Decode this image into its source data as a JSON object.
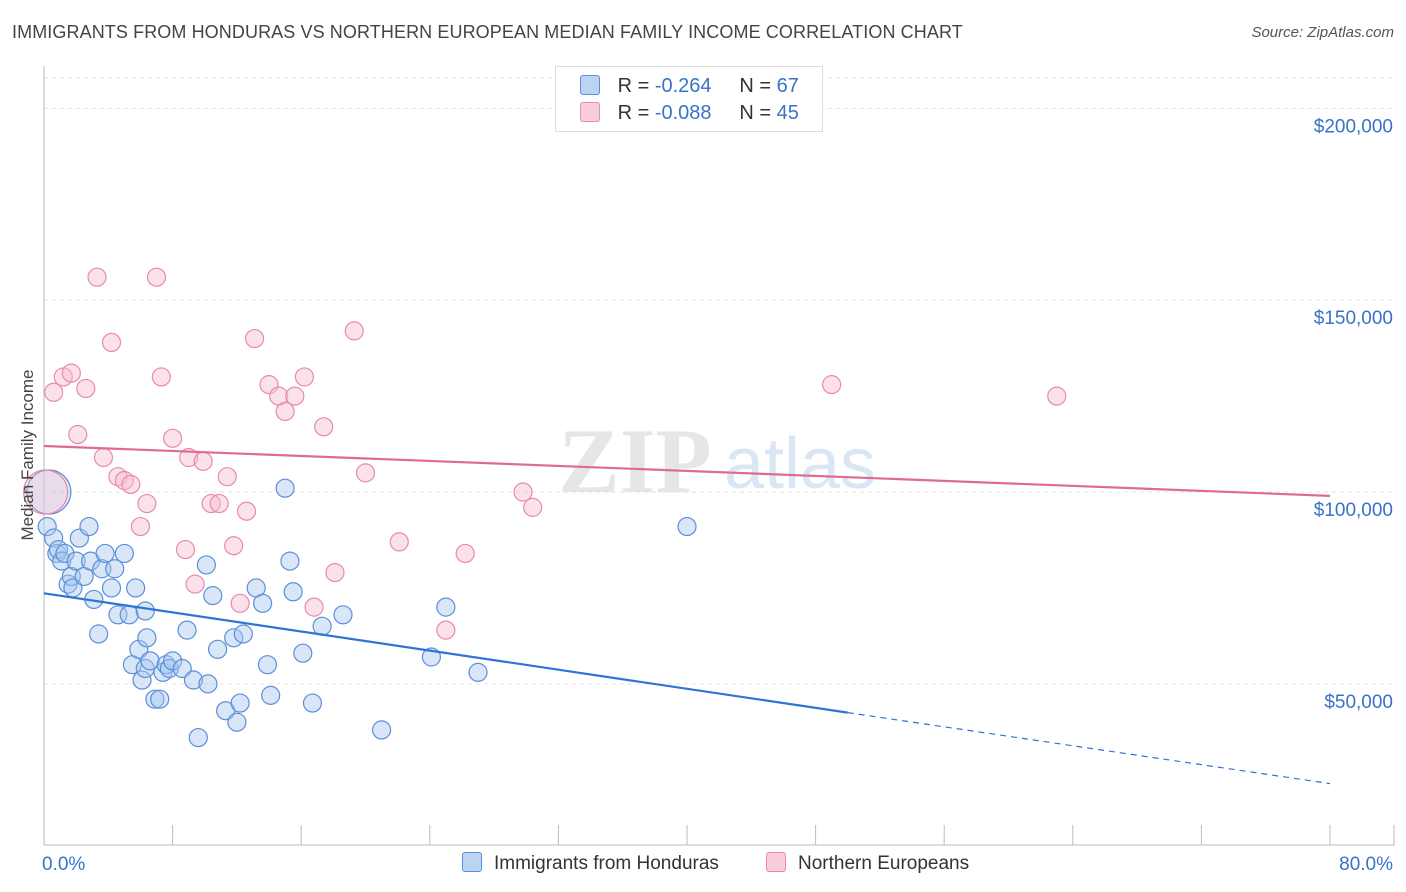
{
  "header": {
    "title": "IMMIGRANTS FROM HONDURAS VS NORTHERN EUROPEAN MEDIAN FAMILY INCOME CORRELATION CHART",
    "source": "Source: ZipAtlas.com"
  },
  "legend": {
    "r_label": "R =",
    "n_label": "N =",
    "rows": [
      {
        "r": "-0.264",
        "n": "67"
      },
      {
        "r": "-0.088",
        "n": "45"
      }
    ]
  },
  "chart_data": {
    "type": "scatter",
    "title": "IMMIGRANTS FROM HONDURAS VS NORTHERN EUROPEAN MEDIAN FAMILY INCOME CORRELATION CHART",
    "xlabel": "",
    "ylabel": "Median Family Income",
    "xlim": [
      0,
      80
    ],
    "ylim": [
      8000,
      210000
    ],
    "x_tick_labels": [
      "0.0%",
      "80.0%"
    ],
    "y_ticks": [
      50000,
      100000,
      150000,
      200000
    ],
    "y_tick_labels": [
      "$50,000",
      "$100,000",
      "$150,000",
      "$200,000"
    ],
    "watermark": {
      "zip": "ZIP",
      "atlas": "atlas"
    },
    "colors": {
      "blue_fill": "#a9c7ef",
      "blue_stroke": "#5b8fd8",
      "blue_line": "#2f73d6",
      "pink_fill": "#f6bfd0",
      "pink_stroke": "#e88aa8",
      "pink_line": "#e06b91",
      "tick_text": "#3a72c8"
    },
    "series": [
      {
        "name": "Immigrants from Honduras",
        "trend": {
          "x0": 0,
          "y0": 73600,
          "x1": 50,
          "y1": 42500,
          "x_dash_end": 80,
          "y_dash_end": 24000
        },
        "points": [
          [
            0.2,
            91000
          ],
          [
            0.6,
            88000
          ],
          [
            0.8,
            84000
          ],
          [
            0.9,
            85000
          ],
          [
            1.1,
            82000
          ],
          [
            1.3,
            84000
          ],
          [
            1.5,
            76000
          ],
          [
            1.7,
            78000
          ],
          [
            1.8,
            75000
          ],
          [
            2.0,
            82000
          ],
          [
            2.2,
            88000
          ],
          [
            2.5,
            78000
          ],
          [
            2.8,
            91000
          ],
          [
            2.9,
            82000
          ],
          [
            3.1,
            72000
          ],
          [
            3.4,
            63000
          ],
          [
            3.6,
            80000
          ],
          [
            3.8,
            84000
          ],
          [
            4.2,
            75000
          ],
          [
            4.4,
            80000
          ],
          [
            4.6,
            68000
          ],
          [
            5.0,
            84000
          ],
          [
            5.3,
            68000
          ],
          [
            5.5,
            55000
          ],
          [
            5.7,
            75000
          ],
          [
            5.9,
            59000
          ],
          [
            6.1,
            51000
          ],
          [
            6.3,
            69000
          ],
          [
            6.4,
            62000
          ],
          [
            6.9,
            46000
          ],
          [
            6.3,
            54000
          ],
          [
            6.6,
            56000
          ],
          [
            7.2,
            46000
          ],
          [
            7.4,
            53000
          ],
          [
            7.6,
            55000
          ],
          [
            7.8,
            54000
          ],
          [
            8.0,
            56000
          ],
          [
            8.6,
            54000
          ],
          [
            8.9,
            64000
          ],
          [
            9.3,
            51000
          ],
          [
            9.6,
            36000
          ],
          [
            10.1,
            81000
          ],
          [
            10.2,
            50000
          ],
          [
            10.5,
            73000
          ],
          [
            10.8,
            59000
          ],
          [
            11.3,
            43000
          ],
          [
            11.8,
            62000
          ],
          [
            12.0,
            40000
          ],
          [
            12.2,
            45000
          ],
          [
            12.4,
            63000
          ],
          [
            13.2,
            75000
          ],
          [
            13.6,
            71000
          ],
          [
            13.9,
            55000
          ],
          [
            14.1,
            47000
          ],
          [
            15.0,
            101000
          ],
          [
            15.3,
            82000
          ],
          [
            15.5,
            74000
          ],
          [
            16.1,
            58000
          ],
          [
            16.7,
            45000
          ],
          [
            17.3,
            65000
          ],
          [
            18.6,
            68000
          ],
          [
            21.0,
            38000
          ],
          [
            24.1,
            57000
          ],
          [
            25.0,
            70000
          ],
          [
            27.0,
            53000
          ],
          [
            40.0,
            91000
          ],
          [
            0.3,
            100000
          ]
        ]
      },
      {
        "name": "Northern Europeans",
        "trend": {
          "x0": 0,
          "y0": 112000,
          "x1": 80,
          "y1": 99000
        },
        "points": [
          [
            0.6,
            126000
          ],
          [
            1.2,
            130000
          ],
          [
            1.7,
            131000
          ],
          [
            2.1,
            115000
          ],
          [
            2.6,
            127000
          ],
          [
            3.3,
            156000
          ],
          [
            3.7,
            109000
          ],
          [
            4.2,
            139000
          ],
          [
            4.6,
            104000
          ],
          [
            5.0,
            103000
          ],
          [
            5.4,
            102000
          ],
          [
            6.0,
            91000
          ],
          [
            6.4,
            97000
          ],
          [
            7.0,
            156000
          ],
          [
            7.3,
            130000
          ],
          [
            8.0,
            114000
          ],
          [
            8.8,
            85000
          ],
          [
            9.0,
            109000
          ],
          [
            9.4,
            76000
          ],
          [
            9.9,
            108000
          ],
          [
            10.4,
            97000
          ],
          [
            10.9,
            97000
          ],
          [
            11.4,
            104000
          ],
          [
            11.8,
            86000
          ],
          [
            12.2,
            71000
          ],
          [
            12.6,
            95000
          ],
          [
            13.1,
            140000
          ],
          [
            14.0,
            128000
          ],
          [
            14.6,
            125000
          ],
          [
            15.0,
            121000
          ],
          [
            15.6,
            125000
          ],
          [
            16.2,
            130000
          ],
          [
            16.8,
            70000
          ],
          [
            17.4,
            117000
          ],
          [
            18.1,
            79000
          ],
          [
            19.3,
            142000
          ],
          [
            20.0,
            105000
          ],
          [
            22.1,
            87000
          ],
          [
            25.0,
            64000
          ],
          [
            26.2,
            84000
          ],
          [
            29.8,
            100000
          ],
          [
            30.4,
            96000
          ],
          [
            49.0,
            128000
          ],
          [
            63.0,
            125000
          ],
          [
            0.1,
            100000
          ]
        ]
      }
    ]
  },
  "bottom_legend": {
    "items": [
      {
        "label": "Immigrants from Honduras"
      },
      {
        "label": "Northern Europeans"
      }
    ]
  }
}
